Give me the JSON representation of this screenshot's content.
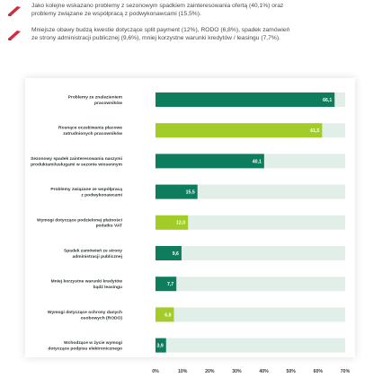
{
  "notes": [
    {
      "text": "Jako kolejne wskazano problemy z sezonowym spadkiem zainteresowania ofertą (40,1%) oraz\nproblemy związane ze współpracą z podwykonawcami (15,5%).",
      "icon": "red-check-icon"
    },
    {
      "text": "Mniejsze obawy budzą kwestie dotyczące split payment (12%), RODO (6,8%), spadek zamówień\nze strony administracji publicznej (9,6%), mniej korzystne warunki kredytów / leasingu (7,7%).",
      "icon": "red-check-icon"
    }
  ],
  "colors": {
    "dark_green": "#0e7d5e",
    "lime": "#a2cc28",
    "track": "#e1efe8",
    "icon_red": "#d42c3c",
    "icon_dark": "#7a1a22"
  },
  "chart_data": {
    "type": "bar",
    "orientation": "horizontal",
    "categories": [
      [
        "Problemy ze znalezieniem",
        "pracowników"
      ],
      [
        "Rosnące oczekiwania płacowe",
        "zatrudnionych pracowników"
      ],
      [
        "Sezonowy spadek zainteresowania naszymi",
        "produktami/usługami w sezonie wiosennym"
      ],
      [
        "Problemy związane ze współpracą",
        "z podwykonawcami"
      ],
      [
        "Wymogi dotyczące podzielonej płatności",
        "podatku VAT"
      ],
      [
        "Spadek zamówień ze strony",
        "administracji publicznej"
      ],
      [
        "Mniej korzystne warunki kredytów",
        "bądź leasingu"
      ],
      [
        "Wymogi dotyczące ochrony danych",
        "osobowych (RODO)"
      ],
      [
        "Wchodzące w życie wymogi",
        "dotyczące podpisu elektronicznego"
      ]
    ],
    "values": [
      66.1,
      61.5,
      40.1,
      15.5,
      12.0,
      9.6,
      7.7,
      6.8,
      3.9
    ],
    "value_labels": [
      "66,1",
      "61,5",
      "40,1",
      "15,5",
      "12,0",
      "9,6",
      "7,7",
      "6,8",
      "3,9"
    ],
    "bar_colors": [
      "dark_green",
      "lime",
      "dark_green",
      "dark_green",
      "lime",
      "dark_green",
      "dark_green",
      "lime",
      "dark_green"
    ],
    "xlim": [
      0,
      70
    ],
    "xticks": [
      "0%",
      "10%",
      "20%",
      "30%",
      "40%",
      "50%",
      "60%",
      "70%"
    ],
    "title": "",
    "xlabel": "",
    "ylabel": "",
    "grid": false,
    "legend": "none"
  }
}
